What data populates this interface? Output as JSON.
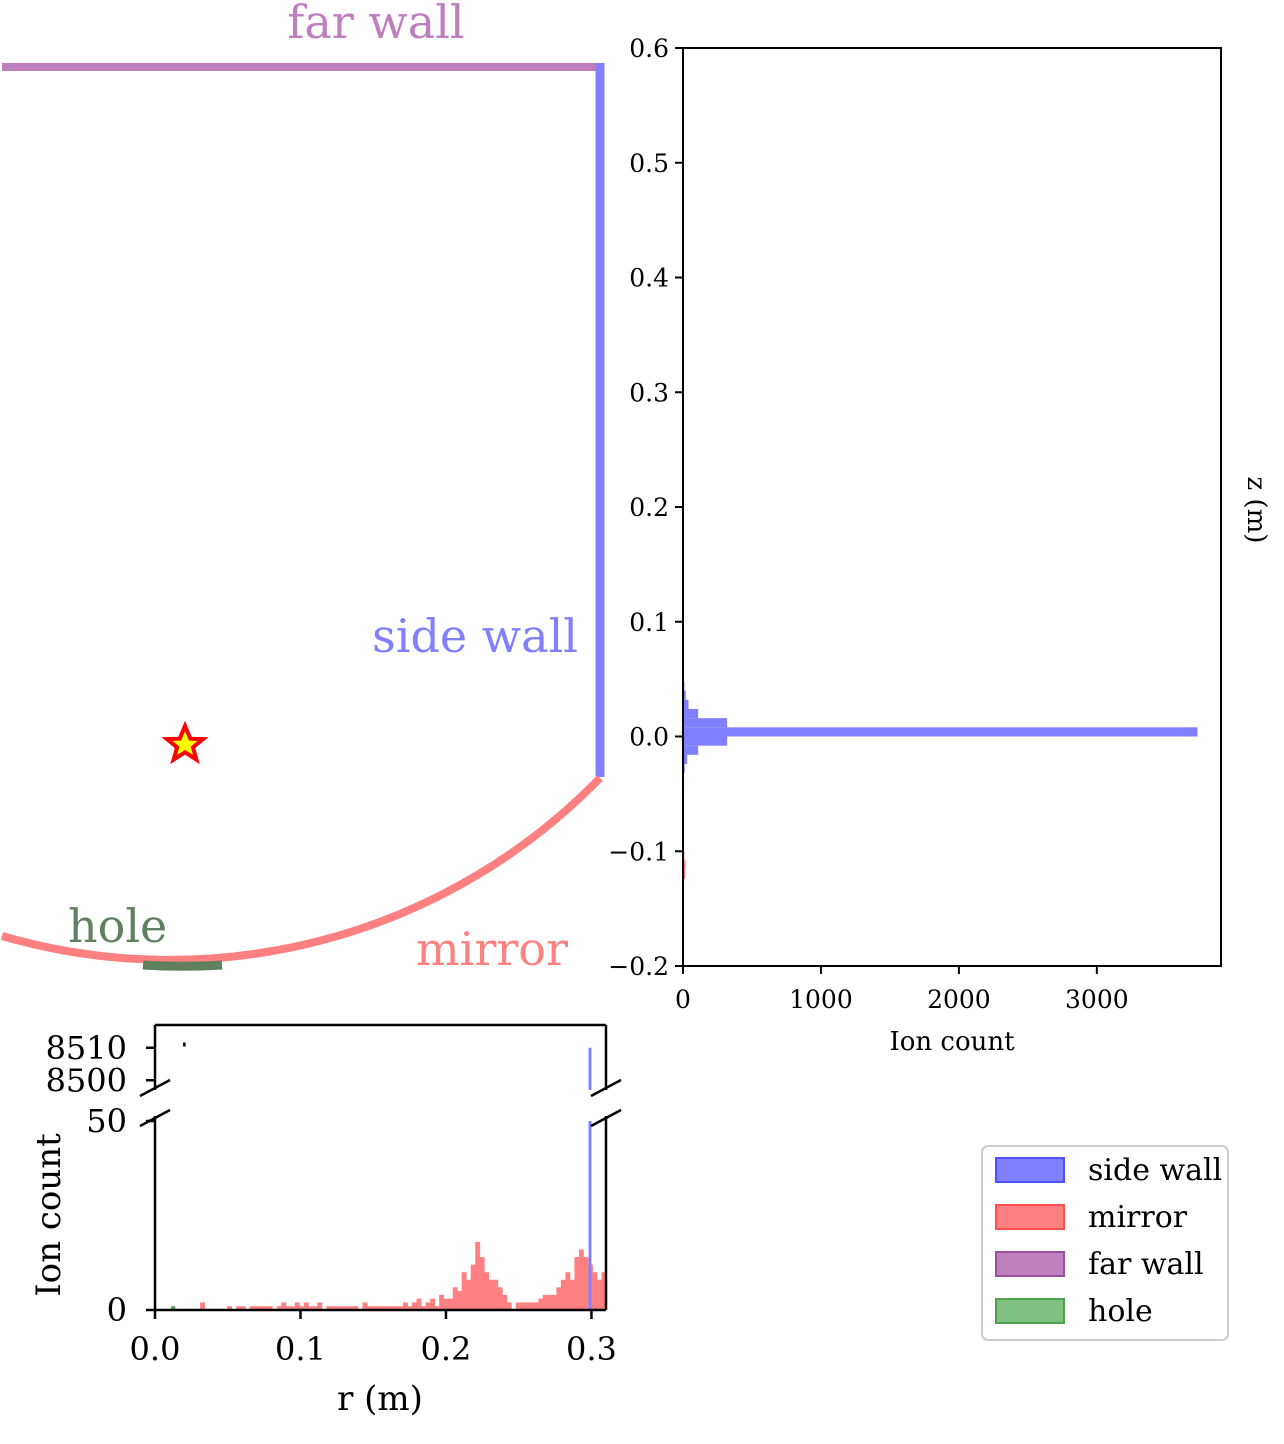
{
  "chart_data": [
    {
      "type": "diagram",
      "panel": "geometry",
      "labels": {
        "far_wall": "far wall",
        "side_wall": "side wall",
        "hole": "hole",
        "mirror": "mirror"
      },
      "colors": {
        "far_wall": "#bf7fbf",
        "side_wall": "#8080ff",
        "mirror": "#ff8080",
        "hole": "#608060",
        "source_fill": "#ffff00",
        "source_edge": "#ff0000"
      },
      "source_marker": "star"
    },
    {
      "type": "bar",
      "orientation": "horizontal",
      "panel": "z-histogram",
      "xlabel": "Ion count",
      "ylabel": "z (m)",
      "xlim": [
        0,
        3900
      ],
      "ylim": [
        -0.2,
        0.6
      ],
      "xticks": [
        "0",
        "1000",
        "2000",
        "3000"
      ],
      "yticks": [
        "−0.2",
        "−0.1",
        "0.0",
        "0.1",
        "0.2",
        "0.3",
        "0.4",
        "0.5",
        "0.6"
      ],
      "ytick_values": [
        -0.2,
        -0.1,
        0.0,
        0.1,
        0.2,
        0.3,
        0.4,
        0.5,
        0.6
      ],
      "xtick_values": [
        0,
        1000,
        2000,
        3000
      ],
      "series": [
        {
          "name": "side wall",
          "color": "#8080ff",
          "bins": [
            {
              "z0": -0.032,
              "z1": -0.024,
              "count": 12
            },
            {
              "z0": -0.024,
              "z1": -0.016,
              "count": 30
            },
            {
              "z0": -0.016,
              "z1": -0.008,
              "count": 110
            },
            {
              "z0": -0.008,
              "z1": 0.0,
              "count": 320
            },
            {
              "z0": 0.0,
              "z1": 0.008,
              "count": 3730
            },
            {
              "z0": 0.008,
              "z1": 0.016,
              "count": 320
            },
            {
              "z0": 0.016,
              "z1": 0.024,
              "count": 110
            },
            {
              "z0": 0.024,
              "z1": 0.032,
              "count": 40
            },
            {
              "z0": 0.032,
              "z1": 0.04,
              "count": 20
            },
            {
              "z0": 0.04,
              "z1": 0.048,
              "count": 10
            },
            {
              "z0": 0.048,
              "z1": 0.056,
              "count": 5
            },
            {
              "z0": 0.056,
              "z1": 0.064,
              "count": 3
            }
          ]
        },
        {
          "name": "mirror",
          "color": "#ff8080",
          "bins": [
            {
              "z0": -0.045,
              "z1": -0.037,
              "count": 8
            },
            {
              "z0": -0.1,
              "z1": -0.092,
              "count": 6
            },
            {
              "z0": -0.108,
              "z1": -0.1,
              "count": 10
            },
            {
              "z0": -0.116,
              "z1": -0.108,
              "count": 18
            },
            {
              "z0": -0.124,
              "z1": -0.116,
              "count": 15
            },
            {
              "z0": -0.132,
              "z1": -0.124,
              "count": 8
            }
          ]
        }
      ]
    },
    {
      "type": "bar",
      "panel": "r-histogram",
      "xlabel": "r (m)",
      "ylabel": "Ion count",
      "xlim": [
        0.0,
        0.31
      ],
      "xticks": [
        "0.0",
        "0.1",
        "0.2",
        "0.3"
      ],
      "xtick_values": [
        0.0,
        0.1,
        0.2,
        0.3
      ],
      "broken_axis": true,
      "lower_ylim": [
        0,
        50
      ],
      "upper_ylim": [
        8497,
        8517
      ],
      "lower_yticks": [
        "0",
        "50"
      ],
      "upper_yticks": [
        "8500",
        "8510"
      ],
      "bin_width": 0.0031,
      "series": [
        {
          "name": "mirror",
          "color": "#ff8080",
          "counts": [
            0,
            0,
            0,
            0,
            0,
            0,
            0,
            0,
            0,
            0,
            2,
            0,
            0,
            0,
            0,
            0,
            1,
            0,
            1,
            1,
            0,
            1,
            1,
            1,
            1,
            1,
            0,
            1,
            2,
            1,
            1,
            2,
            1,
            2,
            1,
            1,
            2,
            0,
            1,
            1,
            1,
            1,
            1,
            1,
            1,
            0,
            2,
            1,
            1,
            1,
            1,
            1,
            1,
            1,
            1,
            2,
            1,
            2,
            3,
            1,
            2,
            3,
            1,
            4,
            3,
            3,
            6,
            5,
            10,
            8,
            12,
            18,
            14,
            10,
            8,
            8,
            6,
            4,
            2,
            0,
            2,
            2,
            2,
            2,
            2,
            3,
            4,
            4,
            4,
            6,
            8,
            10,
            8,
            14,
            16,
            14,
            12,
            10,
            8,
            10
          ]
        },
        {
          "name": "side wall",
          "color": "#8080ff",
          "bar": {
            "r0": 0.298,
            "r1": 0.3,
            "count": 8510
          }
        },
        {
          "name": "hole",
          "color": "#60a060",
          "bar": {
            "r0": 0.011,
            "r1": 0.014,
            "count": 1
          }
        },
        {
          "name": "far wall",
          "color": "#000000",
          "point": {
            "r": 0.02,
            "count": 8511
          }
        }
      ]
    }
  ],
  "legend": {
    "placement": "bottom-right",
    "items": [
      {
        "label": "side wall",
        "face": "#8080ff",
        "edge": "#5050ff"
      },
      {
        "label": "mirror",
        "face": "#ff8080",
        "edge": "#ff5050"
      },
      {
        "label": "far wall",
        "face": "#bf80bf",
        "edge": "#9f4f9f"
      },
      {
        "label": "hole",
        "face": "#80c080",
        "edge": "#50a050"
      }
    ]
  }
}
